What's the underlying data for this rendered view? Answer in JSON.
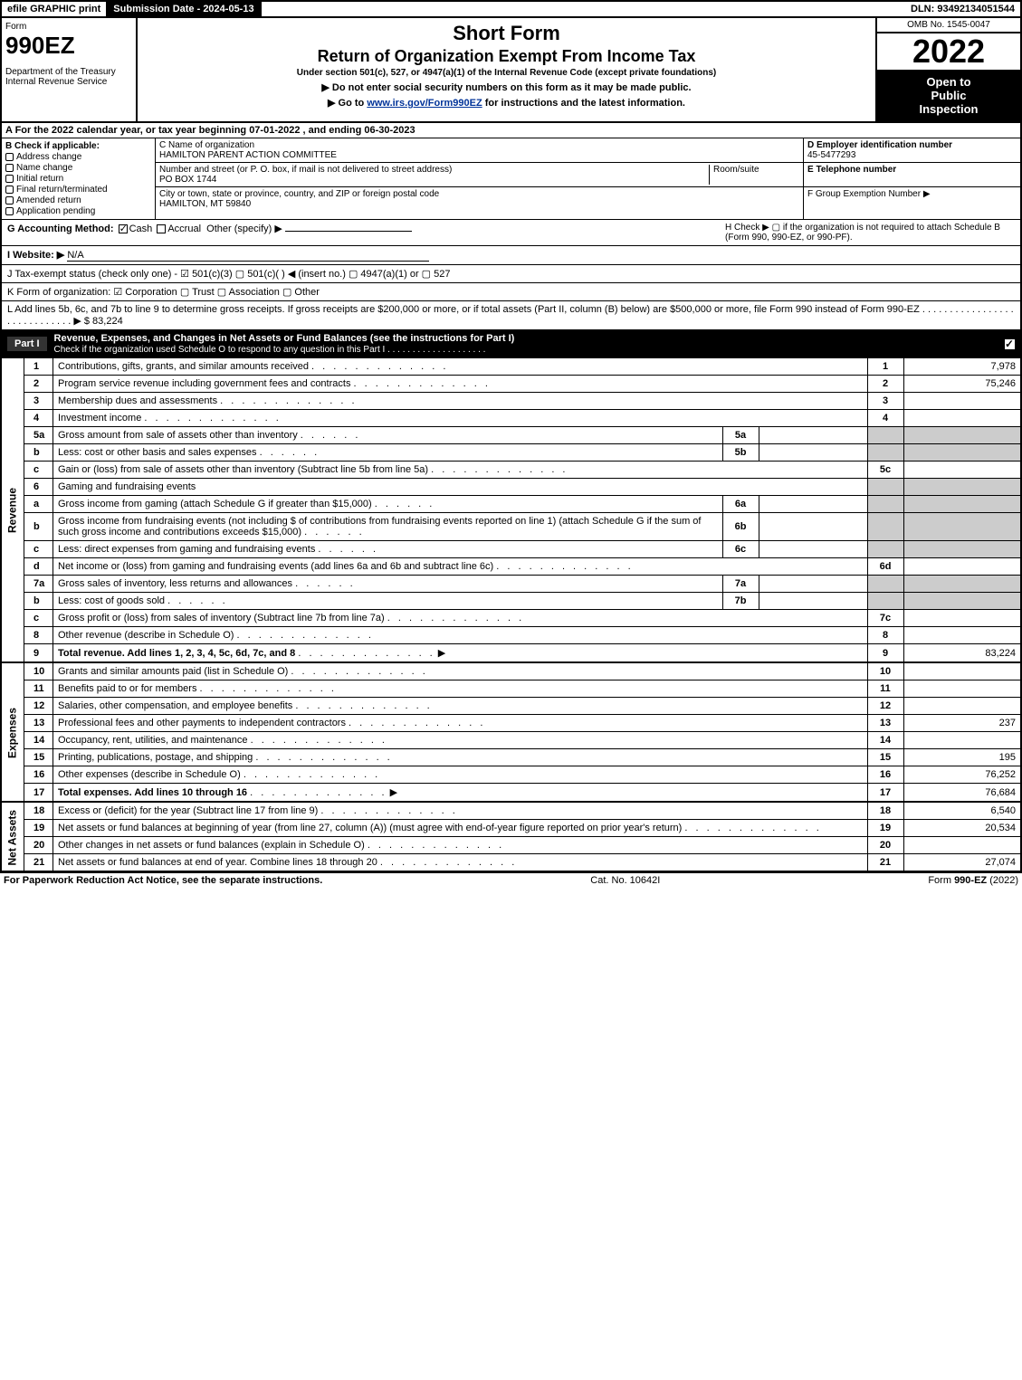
{
  "topbar": {
    "efile": "efile GRAPHIC print",
    "submission": "Submission Date - 2024-05-13",
    "dln": "DLN: 93492134051544"
  },
  "header": {
    "form_label": "Form",
    "form_no": "990EZ",
    "dept1": "Department of the Treasury",
    "dept2": "Internal Revenue Service",
    "short_form": "Short Form",
    "title": "Return of Organization Exempt From Income Tax",
    "subtitle": "Under section 501(c), 527, or 4947(a)(1) of the Internal Revenue Code (except private foundations)",
    "instr1": "▶ Do not enter social security numbers on this form as it may be made public.",
    "instr2_pre": "▶ Go to ",
    "instr2_link": "www.irs.gov/Form990EZ",
    "instr2_post": " for instructions and the latest information.",
    "omb": "OMB No. 1545-0047",
    "year": "2022",
    "open1": "Open to",
    "open2": "Public",
    "open3": "Inspection"
  },
  "sectionA": "A  For the 2022 calendar year, or tax year beginning 07-01-2022  , and ending 06-30-2023",
  "B": {
    "label": "B  Check if applicable:",
    "items": [
      "Address change",
      "Name change",
      "Initial return",
      "Final return/terminated",
      "Amended return",
      "Application pending"
    ]
  },
  "C": {
    "name_lbl": "C Name of organization",
    "name": "HAMILTON PARENT ACTION COMMITTEE",
    "addr_lbl": "Number and street (or P. O. box, if mail is not delivered to street address)",
    "room_lbl": "Room/suite",
    "addr": "PO BOX 1744",
    "city_lbl": "City or town, state or province, country, and ZIP or foreign postal code",
    "city": "HAMILTON, MT  59840"
  },
  "D": {
    "ein_lbl": "D Employer identification number",
    "ein": "45-5477293",
    "tel_lbl": "E Telephone number",
    "grp_lbl": "F Group Exemption Number   ▶"
  },
  "G": {
    "label": "G Accounting Method:",
    "cash": "Cash",
    "accrual": "Accrual",
    "other": "Other (specify) ▶"
  },
  "H": "H   Check ▶  ▢  if the organization is not required to attach Schedule B (Form 990, 990-EZ, or 990-PF).",
  "I": {
    "label": "I Website: ▶",
    "val": "N/A"
  },
  "J": "J Tax-exempt status (check only one) - ☑ 501(c)(3) ▢ 501(c)(  ) ◀ (insert no.) ▢ 4947(a)(1) or ▢ 527",
  "K": "K Form of organization:   ☑ Corporation  ▢ Trust  ▢ Association  ▢ Other",
  "L": {
    "text": "L Add lines 5b, 6c, and 7b to line 9 to determine gross receipts. If gross receipts are $200,000 or more, or if total assets (Part II, column (B) below) are $500,000 or more, file Form 990 instead of Form 990-EZ  .  .  .  .  .  .  .  .  .  .  .  .  .  .  .  .  .  .  .  .  .  .  .  .  .  .  .  .  . ▶ $",
    "amount": "83,224"
  },
  "partI": {
    "label": "Part I",
    "title": "Revenue, Expenses, and Changes in Net Assets or Fund Balances (see the instructions for Part I)",
    "sub": "Check if the organization used Schedule O to respond to any question in this Part I  .  .  .  .  .  .  .  .  .  .  .  .  .  .  .  .  .  .  .  ."
  },
  "vlabels": {
    "revenue": "Revenue",
    "expenses": "Expenses",
    "netassets": "Net Assets"
  },
  "rows": [
    {
      "n": "1",
      "d": "Contributions, gifts, grants, and similar amounts received",
      "ln": "1",
      "amt": "7,978"
    },
    {
      "n": "2",
      "d": "Program service revenue including government fees and contracts",
      "ln": "2",
      "amt": "75,246"
    },
    {
      "n": "3",
      "d": "Membership dues and assessments",
      "ln": "3",
      "amt": ""
    },
    {
      "n": "4",
      "d": "Investment income",
      "ln": "4",
      "amt": ""
    },
    {
      "n": "5a",
      "d": "Gross amount from sale of assets other than inventory",
      "sub": "5a"
    },
    {
      "n": "b",
      "d": "Less: cost or other basis and sales expenses",
      "sub": "5b"
    },
    {
      "n": "c",
      "d": "Gain or (loss) from sale of assets other than inventory (Subtract line 5b from line 5a)",
      "ln": "5c",
      "amt": ""
    },
    {
      "n": "6",
      "d": "Gaming and fundraising events"
    },
    {
      "n": "a",
      "d": "Gross income from gaming (attach Schedule G if greater than $15,000)",
      "sub": "6a"
    },
    {
      "n": "b",
      "d": "Gross income from fundraising events (not including $                    of contributions from fundraising events reported on line 1) (attach Schedule G if the sum of such gross income and contributions exceeds $15,000)",
      "sub": "6b"
    },
    {
      "n": "c",
      "d": "Less: direct expenses from gaming and fundraising events",
      "sub": "6c"
    },
    {
      "n": "d",
      "d": "Net income or (loss) from gaming and fundraising events (add lines 6a and 6b and subtract line 6c)",
      "ln": "6d",
      "amt": ""
    },
    {
      "n": "7a",
      "d": "Gross sales of inventory, less returns and allowances",
      "sub": "7a"
    },
    {
      "n": "b",
      "d": "Less: cost of goods sold",
      "sub": "7b"
    },
    {
      "n": "c",
      "d": "Gross profit or (loss) from sales of inventory (Subtract line 7b from line 7a)",
      "ln": "7c",
      "amt": ""
    },
    {
      "n": "8",
      "d": "Other revenue (describe in Schedule O)",
      "ln": "8",
      "amt": ""
    },
    {
      "n": "9",
      "d": "Total revenue. Add lines 1, 2, 3, 4, 5c, 6d, 7c, and 8",
      "ln": "9",
      "amt": "83,224",
      "bold": true,
      "arrow": true
    }
  ],
  "exp_rows": [
    {
      "n": "10",
      "d": "Grants and similar amounts paid (list in Schedule O)",
      "ln": "10",
      "amt": ""
    },
    {
      "n": "11",
      "d": "Benefits paid to or for members",
      "ln": "11",
      "amt": ""
    },
    {
      "n": "12",
      "d": "Salaries, other compensation, and employee benefits",
      "ln": "12",
      "amt": ""
    },
    {
      "n": "13",
      "d": "Professional fees and other payments to independent contractors",
      "ln": "13",
      "amt": "237"
    },
    {
      "n": "14",
      "d": "Occupancy, rent, utilities, and maintenance",
      "ln": "14",
      "amt": ""
    },
    {
      "n": "15",
      "d": "Printing, publications, postage, and shipping",
      "ln": "15",
      "amt": "195"
    },
    {
      "n": "16",
      "d": "Other expenses (describe in Schedule O)",
      "ln": "16",
      "amt": "76,252"
    },
    {
      "n": "17",
      "d": "Total expenses. Add lines 10 through 16",
      "ln": "17",
      "amt": "76,684",
      "bold": true,
      "arrow": true
    }
  ],
  "na_rows": [
    {
      "n": "18",
      "d": "Excess or (deficit) for the year (Subtract line 17 from line 9)",
      "ln": "18",
      "amt": "6,540"
    },
    {
      "n": "19",
      "d": "Net assets or fund balances at beginning of year (from line 27, column (A)) (must agree with end-of-year figure reported on prior year's return)",
      "ln": "19",
      "amt": "20,534"
    },
    {
      "n": "20",
      "d": "Other changes in net assets or fund balances (explain in Schedule O)",
      "ln": "20",
      "amt": ""
    },
    {
      "n": "21",
      "d": "Net assets or fund balances at end of year. Combine lines 18 through 20",
      "ln": "21",
      "amt": "27,074"
    }
  ],
  "footer": {
    "left": "For Paperwork Reduction Act Notice, see the separate instructions.",
    "center": "Cat. No. 10642I",
    "right_pre": "Form ",
    "right_form": "990-EZ",
    "right_post": " (2022)"
  }
}
